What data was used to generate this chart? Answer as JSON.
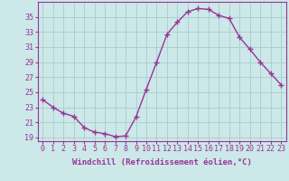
{
  "x": [
    0,
    1,
    2,
    3,
    4,
    5,
    6,
    7,
    8,
    9,
    10,
    11,
    12,
    13,
    14,
    15,
    16,
    17,
    18,
    19,
    20,
    21,
    22,
    23
  ],
  "y": [
    24.0,
    23.0,
    22.2,
    21.8,
    20.3,
    19.7,
    19.5,
    19.1,
    19.2,
    21.7,
    25.4,
    29.0,
    32.7,
    34.3,
    35.7,
    36.1,
    36.0,
    35.2,
    34.8,
    32.3,
    30.7,
    29.0,
    27.5,
    26.0
  ],
  "line_color": "#993399",
  "marker": "+",
  "marker_size": 4,
  "bg_color": "#cce8e8",
  "grid_color": "#aacccc",
  "xlabel": "Windchill (Refroidissement éolien,°C)",
  "xlim": [
    -0.5,
    23.5
  ],
  "ylim": [
    18.5,
    37.0
  ],
  "yticks": [
    19,
    21,
    23,
    25,
    27,
    29,
    31,
    33,
    35
  ],
  "xticks": [
    0,
    1,
    2,
    3,
    4,
    5,
    6,
    7,
    8,
    9,
    10,
    11,
    12,
    13,
    14,
    15,
    16,
    17,
    18,
    19,
    20,
    21,
    22,
    23
  ],
  "xlabel_fontsize": 6.5,
  "tick_fontsize": 6.0,
  "tick_color": "#993399",
  "label_color": "#993399",
  "spine_color": "#993399"
}
